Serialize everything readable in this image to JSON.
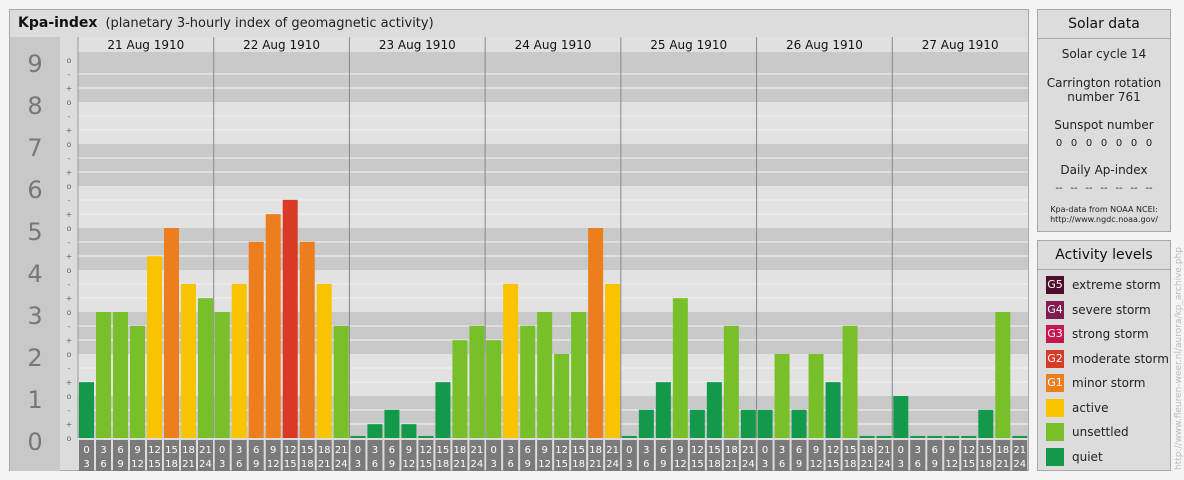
{
  "header": {
    "title": "Kpa-index",
    "subtitle": "(planetary 3-hourly index of geomagnetic activity)"
  },
  "chart_data": {
    "type": "bar",
    "title": "Kpa-index",
    "subtitle": "(planetary 3-hourly index of geomagnetic activity)",
    "ylim": [
      0,
      9
    ],
    "y_major_ticks": [
      "0",
      "1",
      "2",
      "3",
      "4",
      "5",
      "6",
      "7",
      "8",
      "9"
    ],
    "y_minor_ticks": [
      "o",
      "+",
      "-"
    ],
    "days": [
      "21 Aug 1910",
      "22 Aug 1910",
      "23 Aug 1910",
      "24 Aug 1910",
      "25 Aug 1910",
      "26 Aug 1910",
      "27 Aug 1910"
    ],
    "slots": [
      [
        "0",
        "3"
      ],
      [
        "3",
        "6"
      ],
      [
        "6",
        "9"
      ],
      [
        "9",
        "12"
      ],
      [
        "12",
        "15"
      ],
      [
        "15",
        "18"
      ],
      [
        "18",
        "21"
      ],
      [
        "21",
        "24"
      ]
    ],
    "values": [
      [
        1.33,
        3.0,
        3.0,
        2.67,
        4.33,
        5.0,
        3.67,
        3.33
      ],
      [
        3.0,
        3.67,
        4.67,
        5.33,
        5.67,
        4.67,
        3.67,
        2.67
      ],
      [
        0.0,
        0.33,
        0.67,
        0.33,
        0.0,
        1.33,
        2.33,
        2.67
      ],
      [
        2.33,
        3.67,
        2.67,
        3.0,
        2.0,
        3.0,
        5.0,
        3.67
      ],
      [
        0.0,
        0.67,
        1.33,
        3.33,
        0.67,
        1.33,
        2.67,
        0.67
      ],
      [
        0.67,
        2.0,
        0.67,
        2.0,
        1.33,
        2.67,
        0.0,
        0.0
      ],
      [
        1.0,
        0.0,
        0.0,
        0.0,
        0.0,
        0.67,
        3.0,
        0.0
      ]
    ],
    "colors": {
      "quiet": "#129a4a",
      "unsettled": "#78c02a",
      "active": "#f8c300",
      "minor_storm": "#ec7e1e",
      "moderate_storm": "#d83a26",
      "strong_storm": "#c4174e",
      "severe_storm": "#801c4f",
      "extreme_storm": "#4e0e2a"
    }
  },
  "solar": {
    "title": "Solar data",
    "cycle": "Solar cycle 14",
    "rotation_line1": "Carrington rotation",
    "rotation_line2": "number 761",
    "sunspot_label": "Sunspot number",
    "sunspot_values": [
      "0",
      "0",
      "0",
      "0",
      "0",
      "0",
      "0"
    ],
    "ap_label": "Daily Ap-index",
    "ap_values": [
      "--",
      "--",
      "--",
      "--",
      "--",
      "--",
      "--"
    ],
    "source_line1": "Kpa-data from NOAA NCEI:",
    "source_line2": "http://www.ngdc.noaa.gov/"
  },
  "levels": {
    "title": "Activity levels",
    "items": [
      {
        "code": "G5",
        "label": "extreme storm",
        "color": "#4e0e2a"
      },
      {
        "code": "G4",
        "label": "severe storm",
        "color": "#801c4f"
      },
      {
        "code": "G3",
        "label": "strong storm",
        "color": "#c4174e"
      },
      {
        "code": "G2",
        "label": "moderate storm",
        "color": "#d83a26"
      },
      {
        "code": "G1",
        "label": "minor storm",
        "color": "#ec7e1e"
      },
      {
        "code": "",
        "label": "active",
        "color": "#f8c300"
      },
      {
        "code": "",
        "label": "unsettled",
        "color": "#78c02a"
      },
      {
        "code": "",
        "label": "quiet",
        "color": "#129a4a"
      }
    ]
  },
  "credit": "http://www.fleuren-weer.nl/aurora/kp_archive.php"
}
